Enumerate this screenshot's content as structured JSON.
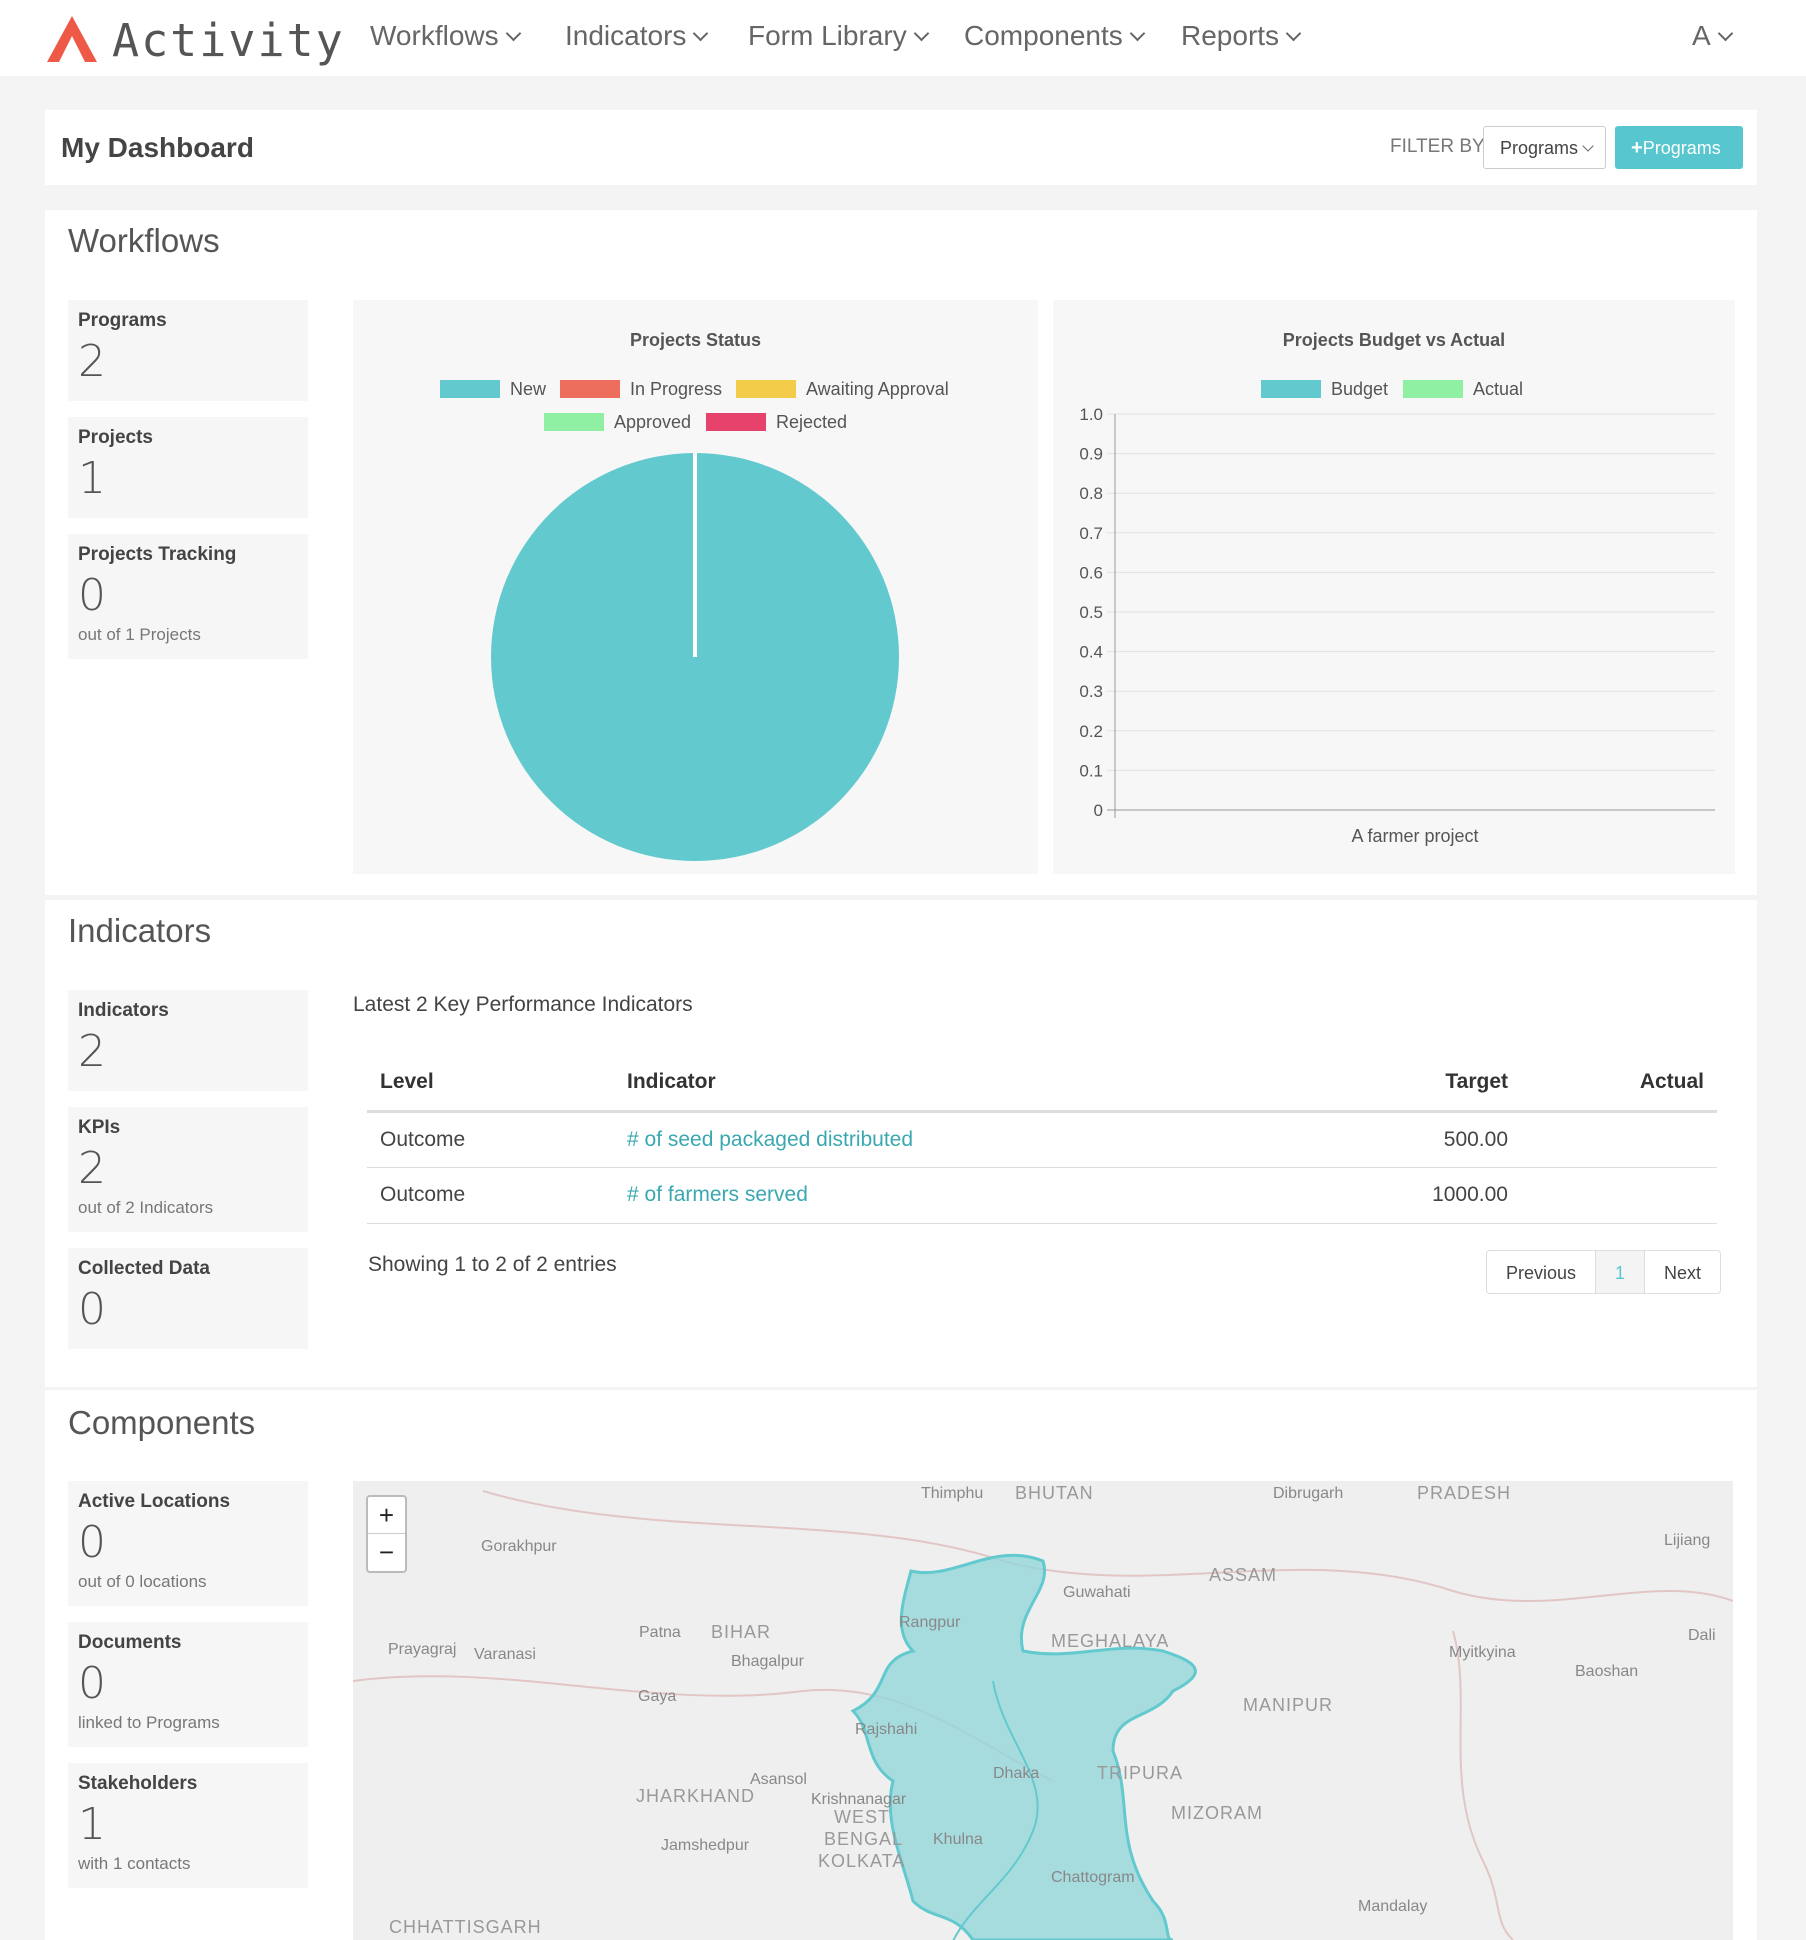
{
  "nav": {
    "brand": "Activity",
    "items": [
      {
        "label": "Workflows"
      },
      {
        "label": "Indicators"
      },
      {
        "label": "Form Library"
      },
      {
        "label": "Components"
      },
      {
        "label": "Reports"
      }
    ],
    "user": "A"
  },
  "header": {
    "title": "My Dashboard",
    "filter_label": "FILTER BY",
    "filter_value": "Programs",
    "add_button": "Programs"
  },
  "workflows": {
    "title": "Workflows",
    "stats": [
      {
        "label": "Programs",
        "value": "2",
        "sub": ""
      },
      {
        "label": "Projects",
        "value": "1",
        "sub": ""
      },
      {
        "label": "Projects Tracking",
        "value": "0",
        "sub": "out of 1 Projects"
      }
    ]
  },
  "indicators": {
    "title": "Indicators",
    "stats": [
      {
        "label": "Indicators",
        "value": "2",
        "sub": ""
      },
      {
        "label": "KPIs",
        "value": "2",
        "sub": "out of 2 Indicators"
      },
      {
        "label": "Collected Data",
        "value": "0",
        "sub": ""
      }
    ],
    "table_title": "Latest 2 Key Performance Indicators",
    "columns": [
      "Level",
      "Indicator",
      "Target",
      "Actual"
    ],
    "rows": [
      {
        "level": "Outcome",
        "indicator": "# of seed packaged distributed",
        "target": "500.00",
        "actual": ""
      },
      {
        "level": "Outcome",
        "indicator": "# of farmers served",
        "target": "1000.00",
        "actual": ""
      }
    ],
    "showing": "Showing 1 to 2 of 2 entries",
    "pager": {
      "prev": "Previous",
      "page": "1",
      "next": "Next"
    }
  },
  "components": {
    "title": "Components",
    "stats": [
      {
        "label": "Active Locations",
        "value": "0",
        "sub": "out of 0 locations"
      },
      {
        "label": "Documents",
        "value": "0",
        "sub": "linked to Programs"
      },
      {
        "label": "Stakeholders",
        "value": "1",
        "sub": "with 1 contacts"
      }
    ],
    "map": {
      "zoom_in": "+",
      "zoom_out": "−",
      "labels": [
        "Thimphu",
        "BHUTAN",
        "Dibrugarh",
        "PRADESH",
        "Lijiang",
        "Gorakhpur",
        "Guwahati",
        "ASSAM",
        "Rangpur",
        "MEGHALAYA",
        "Prayagraj",
        "Varanasi",
        "Patna",
        "BIHAR",
        "Bhagalpur",
        "Myitkyina",
        "Dali",
        "Baoshan",
        "Gaya",
        "MANIPUR",
        "Rajshahi",
        "Asansol",
        "Dhaka",
        "TRIPURA",
        "JHARKHAND",
        "Krishnanagar",
        "WEST",
        "BENGAL",
        "KOLKATA",
        "Khulna",
        "MIZORAM",
        "Jamshedpur",
        "Chattogram",
        "Mandalay",
        "CHHATTISGARH"
      ]
    }
  },
  "colors": {
    "accent": "#58c6cf",
    "new": "#62c9ce",
    "in_progress": "#ee6e5d",
    "awaiting": "#f3cc4a",
    "approved": "#8ff0a4",
    "rejected": "#e6426b",
    "budget": "#62c9ce",
    "actual": "#8ff0a4",
    "logo": "#ee5a47"
  },
  "chart_data": [
    {
      "type": "pie",
      "title": "Projects Status",
      "categories": [
        "New",
        "In Progress",
        "Awaiting Approval",
        "Approved",
        "Rejected"
      ],
      "values": [
        1,
        0,
        0,
        0,
        0
      ]
    },
    {
      "type": "bar",
      "title": "Projects Budget vs Actual",
      "categories": [
        "A farmer project"
      ],
      "series": [
        {
          "name": "Budget",
          "values": [
            0
          ]
        },
        {
          "name": "Actual",
          "values": [
            0
          ]
        }
      ],
      "ylim": [
        0,
        1.0
      ],
      "yticks": [
        "1.0",
        "0.9",
        "0.8",
        "0.7",
        "0.6",
        "0.5",
        "0.4",
        "0.3",
        "0.2",
        "0.1",
        "0"
      ],
      "grid": true,
      "legend": "top"
    }
  ]
}
